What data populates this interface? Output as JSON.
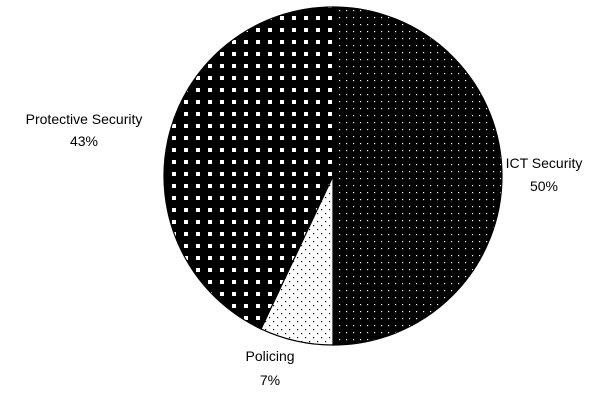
{
  "chart_data": {
    "type": "pie",
    "slices": [
      {
        "label": "ICT Security",
        "value": 50,
        "value_label": "50%",
        "pattern": "fine-dots-on-black",
        "label_side": "right"
      },
      {
        "label": "Policing",
        "value": 7,
        "value_label": "7%",
        "pattern": "black-dots-on-white",
        "label_side": "bottom"
      },
      {
        "label": "Protective Security",
        "value": 43,
        "value_label": "43%",
        "pattern": "white-squares-on-black",
        "label_side": "left"
      }
    ],
    "start_angle": "12 o'clock",
    "direction": "clockwise",
    "legend": "none",
    "colors": {
      "background": "#ffffff",
      "ink": "#000000"
    }
  }
}
